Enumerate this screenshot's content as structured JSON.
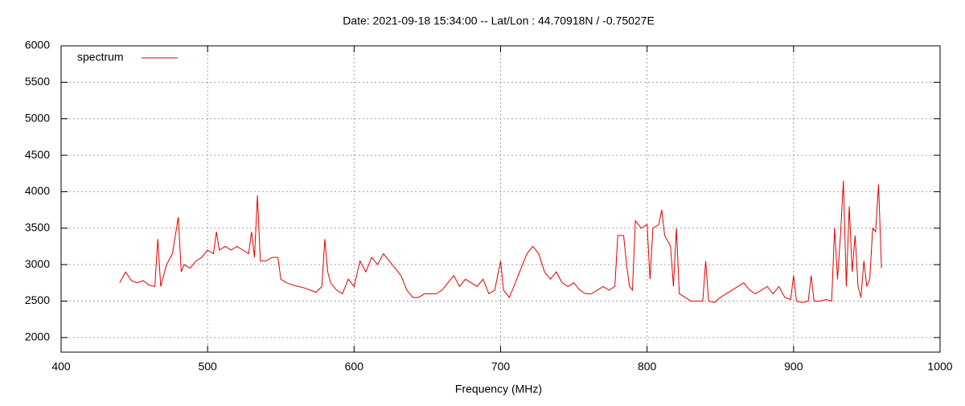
{
  "chart_data": {
    "type": "line",
    "title": "Date: 2021-09-18 15:34:00  --  Lat/Lon : 44.70918N / -0.75027E",
    "xlabel": "Frequency (MHz)",
    "x": [
      440,
      444,
      448,
      452,
      456,
      460,
      464,
      466,
      468,
      472,
      476,
      480,
      482,
      484,
      488,
      492,
      496,
      500,
      504,
      506,
      508,
      512,
      516,
      520,
      524,
      528,
      530,
      532,
      534,
      536,
      540,
      544,
      548,
      550,
      554,
      558,
      562,
      566,
      570,
      574,
      578,
      580,
      582,
      584,
      588,
      592,
      596,
      600,
      604,
      608,
      612,
      616,
      620,
      624,
      628,
      632,
      636,
      640,
      644,
      648,
      652,
      656,
      660,
      664,
      668,
      672,
      676,
      680,
      684,
      688,
      692,
      696,
      700,
      702,
      706,
      710,
      714,
      718,
      722,
      726,
      730,
      734,
      738,
      742,
      746,
      750,
      754,
      758,
      762,
      766,
      770,
      774,
      778,
      780,
      784,
      786,
      788,
      790,
      792,
      796,
      800,
      802,
      804,
      808,
      810,
      812,
      816,
      818,
      820,
      822,
      826,
      830,
      834,
      838,
      840,
      842,
      846,
      850,
      854,
      858,
      862,
      866,
      870,
      874,
      878,
      882,
      886,
      890,
      894,
      898,
      900,
      902,
      906,
      910,
      912,
      914,
      918,
      922,
      926,
      928,
      930,
      932,
      934,
      936,
      938,
      940,
      942,
      944,
      946,
      948,
      950,
      952,
      954,
      956,
      958,
      960
    ],
    "series": [
      {
        "name": "spectrum",
        "color": "#e00000",
        "values": [
          2750,
          2900,
          2780,
          2750,
          2780,
          2720,
          2700,
          3350,
          2700,
          3000,
          3150,
          3650,
          2900,
          3000,
          2950,
          3050,
          3100,
          3200,
          3150,
          3450,
          3200,
          3250,
          3200,
          3250,
          3200,
          3150,
          3450,
          3100,
          3950,
          3050,
          3050,
          3100,
          3100,
          2800,
          2750,
          2720,
          2700,
          2680,
          2650,
          2620,
          2700,
          3350,
          2900,
          2750,
          2650,
          2600,
          2800,
          2700,
          3050,
          2900,
          3100,
          3000,
          3150,
          3050,
          2950,
          2850,
          2650,
          2550,
          2550,
          2600,
          2600,
          2600,
          2650,
          2750,
          2850,
          2700,
          2800,
          2750,
          2700,
          2800,
          2600,
          2650,
          3050,
          2650,
          2550,
          2750,
          2950,
          3150,
          3250,
          3150,
          2900,
          2800,
          2900,
          2750,
          2700,
          2750,
          2650,
          2600,
          2600,
          2650,
          2700,
          2650,
          2700,
          3400,
          3400,
          3000,
          2700,
          2650,
          3600,
          3500,
          3550,
          2800,
          3500,
          3550,
          3750,
          3400,
          3250,
          2700,
          3500,
          2600,
          2550,
          2500,
          2500,
          2500,
          3050,
          2500,
          2480,
          2550,
          2600,
          2650,
          2700,
          2750,
          2650,
          2600,
          2650,
          2700,
          2600,
          2700,
          2550,
          2520,
          2850,
          2500,
          2480,
          2500,
          2850,
          2500,
          2500,
          2520,
          2500,
          3500,
          2800,
          3400,
          4150,
          2700,
          3800,
          2900,
          3400,
          2700,
          2550,
          3050,
          2700,
          2800,
          3500,
          3450,
          4100,
          2950
        ]
      }
    ],
    "xlim": [
      400,
      1000
    ],
    "ylim": [
      1800,
      6000
    ],
    "xticks": [
      400,
      500,
      600,
      700,
      800,
      900,
      1000
    ],
    "yticks": [
      2000,
      2500,
      3000,
      3500,
      4000,
      4500,
      5000,
      5500,
      6000
    ],
    "grid": true,
    "legend": "top-left"
  }
}
